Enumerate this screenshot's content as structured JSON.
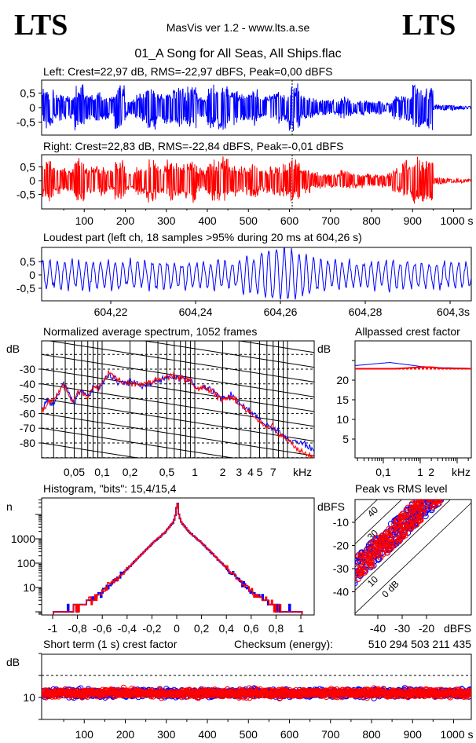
{
  "header": {
    "logo_left": "LTS",
    "logo_right": "LTS",
    "app_title": "MasVis ver 1.2 - www.lts.a.se",
    "file_title": "01_A Song for All Seas, All Ships.flac"
  },
  "colors": {
    "left": "#0000ff",
    "right": "#ff0000"
  },
  "chart_data": [
    {
      "id": "left_waveform",
      "type": "line",
      "title": "Left: Crest=22,97 dB, RMS=-22,97 dBFS, Peak=0,00 dBFS",
      "yticks": [
        "0,5",
        "0",
        "-0,5"
      ],
      "ytick_values": [
        0.5,
        0,
        -0.5
      ],
      "xlim": [
        0,
        1045
      ],
      "envelope_bin_seconds": 25,
      "envelope": [
        0.75,
        0.5,
        0.45,
        0.9,
        0.55,
        0.6,
        0.45,
        0.8,
        0.35,
        0.55,
        0.85,
        0.6,
        0.75,
        0.7,
        0.8,
        0.45,
        0.85,
        0.9,
        0.7,
        0.55,
        0.65,
        0.45,
        0.6,
        0.6,
        0.9,
        0.5,
        0.35,
        0.3,
        0.3,
        0.4,
        0.25,
        0.3,
        0.25,
        0.2,
        0.45,
        0.5,
        0.9,
        0.85,
        0.1,
        0.1,
        0.08,
        0.05
      ]
    },
    {
      "id": "right_waveform",
      "type": "line",
      "title": "Right: Crest=22,83 dB, RMS=-22,84 dBFS, Peak=-0,01 dBFS",
      "yticks": [
        "0,5",
        "0",
        "-0,5"
      ],
      "ytick_values": [
        0.5,
        0,
        -0.5
      ],
      "xlim": [
        0,
        1045
      ],
      "xticks": [
        "100",
        "200",
        "300",
        "400",
        "500",
        "600",
        "700",
        "800",
        "900",
        "1000 s"
      ],
      "xtick_values": [
        100,
        200,
        300,
        400,
        500,
        600,
        700,
        800,
        900,
        1000
      ],
      "envelope_bin_seconds": 25,
      "envelope": [
        0.8,
        0.55,
        0.5,
        0.85,
        0.55,
        0.6,
        0.5,
        0.85,
        0.4,
        0.55,
        0.85,
        0.6,
        0.8,
        0.7,
        0.85,
        0.5,
        0.8,
        0.9,
        0.7,
        0.55,
        0.65,
        0.5,
        0.6,
        0.65,
        0.9,
        0.5,
        0.35,
        0.3,
        0.3,
        0.4,
        0.3,
        0.3,
        0.25,
        0.3,
        0.5,
        0.85,
        0.95,
        0.9,
        0.15,
        0.1,
        0.08,
        0.06
      ]
    },
    {
      "id": "loudest_part",
      "type": "line",
      "title": "Loudest part (left  ch, 18 samples >95% during 20 ms at 604,26 s)",
      "yticks": [
        "0,5",
        "0",
        "-0,5"
      ],
      "ytick_values": [
        0.5,
        0,
        -0.5
      ],
      "xticks": [
        "604,22",
        "604,24",
        "604,26",
        "604,28",
        "604,3s"
      ],
      "xtick_values": [
        604.22,
        604.24,
        604.26,
        604.28,
        604.3
      ],
      "xlim": [
        604.2037,
        604.305
      ],
      "peak_time": 604.26
    },
    {
      "id": "spectrum",
      "type": "line",
      "title": "Normalized average spectrum, 1052 frames",
      "ylabel": "dB",
      "yticks": [
        "-30",
        "-40",
        "-50",
        "-60",
        "-70",
        "-80"
      ],
      "ytick_values": [
        -30,
        -40,
        -50,
        -60,
        -70,
        -80
      ],
      "xticks": [
        "0,05",
        "0,1",
        "0,2",
        "0,5",
        "1",
        "2",
        "3",
        "4",
        "5",
        "7",
        "kHz"
      ],
      "xtick_values": [
        0.05,
        0.1,
        0.2,
        0.5,
        1,
        2,
        3,
        4,
        5,
        7,
        null
      ],
      "xscale": "log",
      "grid": true,
      "series": [
        {
          "channel": "left",
          "points": [
            [
              0.022,
              -58
            ],
            [
              0.025,
              -52
            ],
            [
              0.03,
              -54
            ],
            [
              0.034,
              -47
            ],
            [
              0.038,
              -39
            ],
            [
              0.042,
              -44
            ],
            [
              0.047,
              -50
            ],
            [
              0.05,
              -54
            ],
            [
              0.055,
              -46
            ],
            [
              0.06,
              -44
            ],
            [
              0.07,
              -49
            ],
            [
              0.08,
              -43
            ],
            [
              0.09,
              -43
            ],
            [
              0.1,
              -40
            ],
            [
              0.12,
              -33
            ],
            [
              0.15,
              -39
            ],
            [
              0.2,
              -39
            ],
            [
              0.3,
              -41
            ],
            [
              0.4,
              -37
            ],
            [
              0.5,
              -36
            ],
            [
              0.7,
              -36
            ],
            [
              0.9,
              -37
            ],
            [
              1,
              -41
            ],
            [
              1.5,
              -44
            ],
            [
              2,
              -50
            ],
            [
              2.5,
              -48
            ],
            [
              3,
              -53
            ],
            [
              4,
              -59
            ],
            [
              5,
              -64
            ],
            [
              6,
              -68
            ],
            [
              7,
              -70
            ],
            [
              8,
              -72
            ],
            [
              10,
              -77
            ],
            [
              12,
              -79
            ],
            [
              15,
              -80
            ],
            [
              19,
              -85
            ]
          ]
        },
        {
          "channel": "right",
          "points": [
            [
              0.022,
              -58
            ],
            [
              0.025,
              -54
            ],
            [
              0.03,
              -50
            ],
            [
              0.034,
              -46
            ],
            [
              0.038,
              -40
            ],
            [
              0.042,
              -46
            ],
            [
              0.047,
              -52
            ],
            [
              0.05,
              -50
            ],
            [
              0.055,
              -45
            ],
            [
              0.06,
              -46
            ],
            [
              0.07,
              -50
            ],
            [
              0.08,
              -42
            ],
            [
              0.09,
              -44
            ],
            [
              0.1,
              -40
            ],
            [
              0.12,
              -32
            ],
            [
              0.15,
              -38
            ],
            [
              0.2,
              -40
            ],
            [
              0.3,
              -40
            ],
            [
              0.4,
              -37
            ],
            [
              0.5,
              -35
            ],
            [
              0.7,
              -35
            ],
            [
              0.9,
              -38
            ],
            [
              1,
              -42
            ],
            [
              1.5,
              -45
            ],
            [
              2,
              -51
            ],
            [
              2.5,
              -48
            ],
            [
              3,
              -54
            ],
            [
              4,
              -60
            ],
            [
              5,
              -66
            ],
            [
              6,
              -69
            ],
            [
              7,
              -69
            ],
            [
              8,
              -74
            ],
            [
              10,
              -78
            ],
            [
              12,
              -82
            ],
            [
              15,
              -87
            ],
            [
              19,
              -89
            ]
          ]
        }
      ]
    },
    {
      "id": "allpassed_crest",
      "type": "line",
      "title": "Allpassed crest factor",
      "ylabel": "dB",
      "yticks": [
        "20",
        "15",
        "10",
        "5"
      ],
      "ytick_values": [
        20,
        15,
        10,
        5
      ],
      "xticks": [
        "0,1",
        "1",
        "2",
        "kHz"
      ],
      "xtick_values": [
        0.1,
        1,
        2,
        null
      ],
      "xscale": "log",
      "reference_crest": 22.9,
      "series": [
        {
          "channel": "left",
          "points": [
            [
              0.017,
              23.7
            ],
            [
              0.05,
              24.1
            ],
            [
              0.15,
              24.5
            ],
            [
              0.4,
              24.0
            ],
            [
              1,
              23.5
            ],
            [
              3,
              23.2
            ],
            [
              24,
              23.0
            ]
          ]
        },
        {
          "channel": "right",
          "points": [
            [
              0.017,
              22.9
            ],
            [
              0.2,
              22.9
            ],
            [
              0.5,
              23.1
            ],
            [
              1,
              23.3
            ],
            [
              2,
              23.3
            ],
            [
              4,
              23.0
            ],
            [
              24,
              22.9
            ]
          ]
        }
      ]
    },
    {
      "id": "histogram",
      "type": "line",
      "title": "Histogram, \"bits\": 15,4/15,4",
      "ylabel": "n",
      "yscale": "log",
      "yticks": [
        "1000",
        "100",
        "10"
      ],
      "ytick_values": [
        1000,
        100,
        10
      ],
      "xticks": [
        "-1",
        "-0,8",
        "-0,6",
        "-0,4",
        "-0,2",
        "0",
        "0,2",
        "0,4",
        "0,6",
        "0,8",
        "1"
      ],
      "xtick_values": [
        -1,
        -0.8,
        -0.6,
        -0.4,
        -0.2,
        0,
        0.2,
        0.4,
        0.6,
        0.8,
        1
      ],
      "abs_profile": [
        [
          0,
          40000
        ],
        [
          0.01,
          12000
        ],
        [
          0.03,
          5000
        ],
        [
          0.1,
          1800
        ],
        [
          0.2,
          650
        ],
        [
          0.3,
          200
        ],
        [
          0.4,
          60
        ],
        [
          0.5,
          20
        ],
        [
          0.6,
          7
        ],
        [
          0.7,
          3
        ],
        [
          0.8,
          1.5
        ],
        [
          1.0,
          1
        ]
      ]
    },
    {
      "id": "peak_vs_rms",
      "type": "scatter",
      "title": "Peak vs RMS level",
      "ylabel": "dBFS",
      "xlabel": "dBFS",
      "yticks": [
        "-10",
        "-20",
        "-30",
        "-40"
      ],
      "ytick_values": [
        -10,
        -20,
        -30,
        -40
      ],
      "xticks": [
        "-40",
        "-30",
        "-20"
      ],
      "xtick_values": [
        -40,
        -30,
        -20
      ],
      "crest_lines": [
        "0 dB",
        "10",
        "20",
        "30",
        "40"
      ],
      "crest_line_values": [
        0,
        10,
        20,
        30,
        40
      ],
      "rms_range": [
        -50,
        -14
      ],
      "crest_range": [
        13,
        24
      ]
    },
    {
      "id": "short_term_crest",
      "type": "scatter",
      "title": "Short term (1 s) crest factor",
      "ylabel": "dB",
      "yticks": [
        "10"
      ],
      "ytick_values": [
        10
      ],
      "dashed_levels": [
        10,
        20
      ],
      "xticks": [
        "100",
        "200",
        "300",
        "400",
        "500",
        "600",
        "700",
        "800",
        "900",
        "1000 s"
      ],
      "xtick_values": [
        100,
        200,
        300,
        400,
        500,
        600,
        700,
        800,
        900,
        1000
      ],
      "mean_crest": 12,
      "spread": 1.6
    }
  ],
  "checksum": {
    "label": "Checksum (energy):",
    "value": "510 294 503 211 435"
  }
}
